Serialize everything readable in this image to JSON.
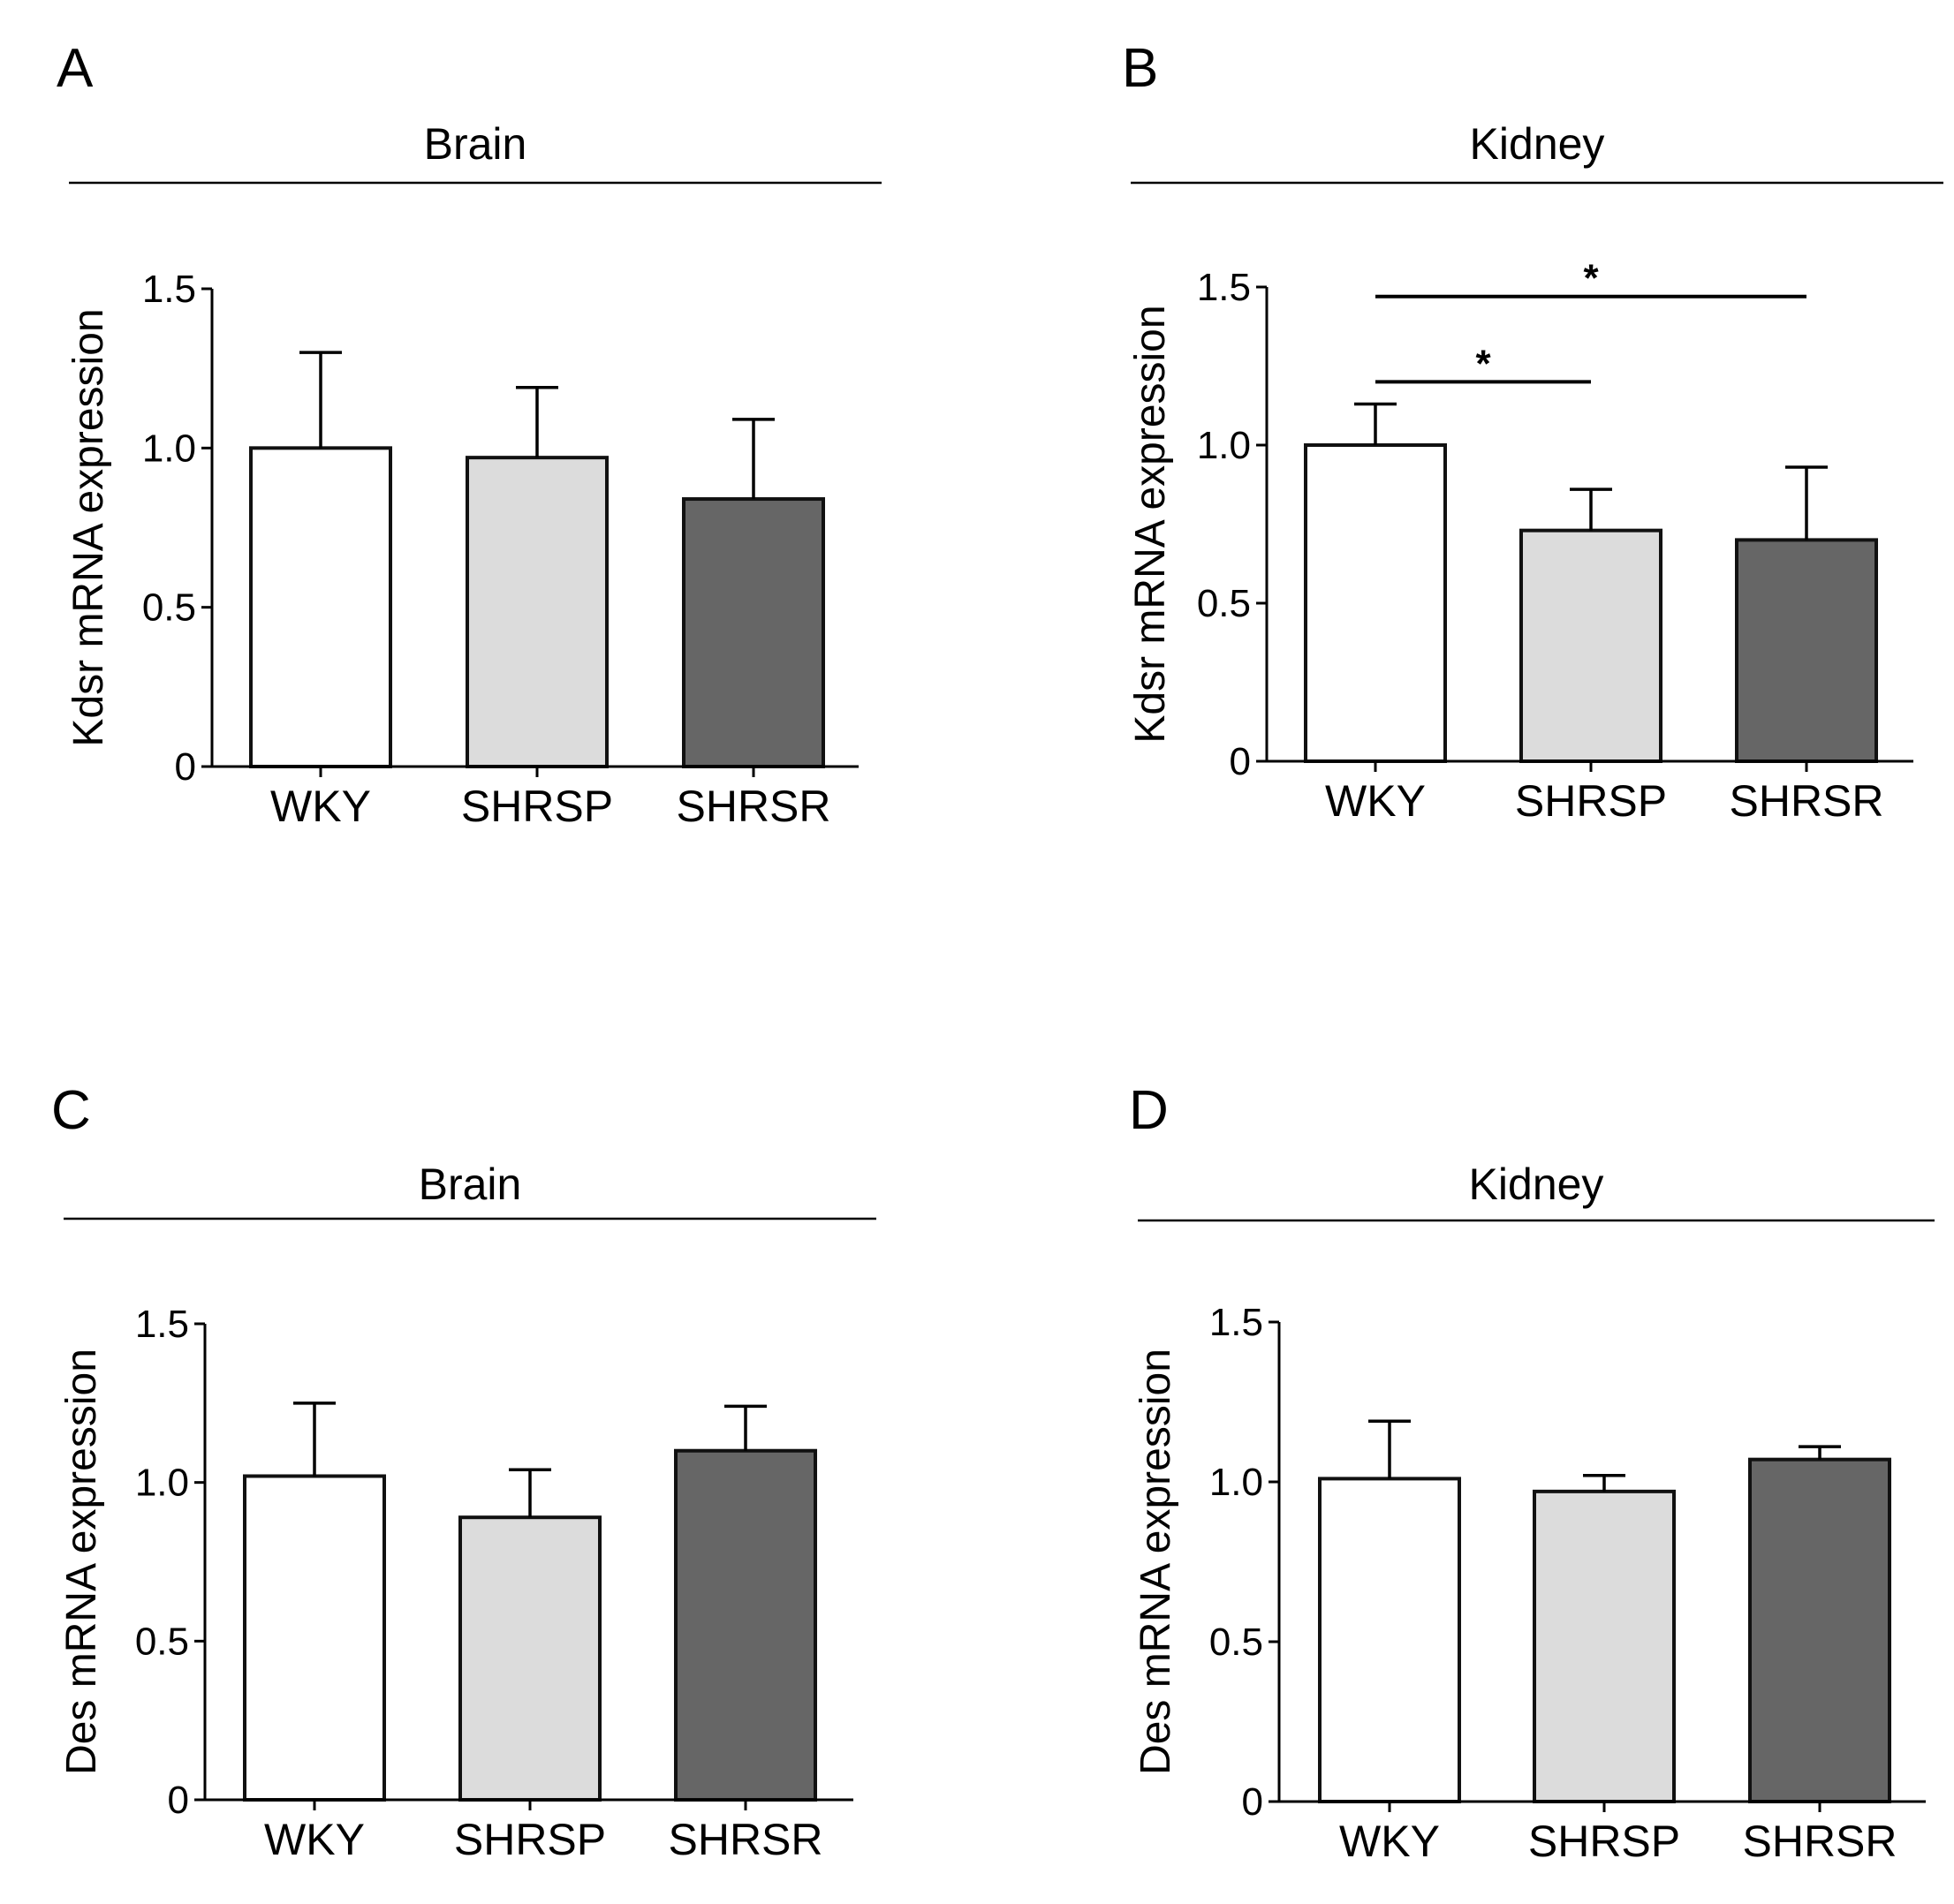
{
  "chart_data": [
    {
      "type": "bar",
      "panel": "A",
      "title": "Brain",
      "ylabel": "Kdsr mRNA expression",
      "xlabel": "",
      "categories": [
        "WKY",
        "SHRSP",
        "SHRSR"
      ],
      "values": [
        1.0,
        0.97,
        0.84
      ],
      "errors": [
        0.3,
        0.22,
        0.25
      ],
      "ylim": [
        0,
        1.5
      ],
      "yticks": [
        {
          "v": 0,
          "label": "0"
        },
        {
          "v": 0.5,
          "label": "0.5"
        },
        {
          "v": 1.0,
          "label": "1.0"
        },
        {
          "v": 1.5,
          "label": "1.5"
        }
      ],
      "colors": [
        "#ffffff",
        "#dcdcdc",
        "#666666"
      ],
      "significance": []
    },
    {
      "type": "bar",
      "panel": "B",
      "title": "Kidney",
      "ylabel": "Kdsr mRNA expression",
      "xlabel": "",
      "categories": [
        "WKY",
        "SHRSP",
        "SHRSR"
      ],
      "values": [
        1.0,
        0.73,
        0.7
      ],
      "errors": [
        0.13,
        0.13,
        0.23
      ],
      "ylim": [
        0,
        1.5
      ],
      "yticks": [
        {
          "v": 0,
          "label": "0"
        },
        {
          "v": 0.5,
          "label": "0.5"
        },
        {
          "v": 1.0,
          "label": "1.0"
        },
        {
          "v": 1.5,
          "label": "1.5"
        }
      ],
      "colors": [
        "#ffffff",
        "#dcdcdc",
        "#666666"
      ],
      "significance": [
        {
          "from": 0,
          "to": 1,
          "y": 1.2,
          "label": "*"
        },
        {
          "from": 0,
          "to": 2,
          "y": 1.47,
          "label": "*"
        }
      ]
    },
    {
      "type": "bar",
      "panel": "C",
      "title": "Brain",
      "ylabel": "Des mRNA expression",
      "xlabel": "",
      "categories": [
        "WKY",
        "SHRSP",
        "SHRSR"
      ],
      "values": [
        1.02,
        0.89,
        1.1
      ],
      "errors": [
        0.23,
        0.15,
        0.14
      ],
      "ylim": [
        0,
        1.5
      ],
      "yticks": [
        {
          "v": 0,
          "label": "0"
        },
        {
          "v": 0.5,
          "label": "0.5"
        },
        {
          "v": 1.0,
          "label": "1.0"
        },
        {
          "v": 1.5,
          "label": "1.5"
        }
      ],
      "colors": [
        "#ffffff",
        "#dcdcdc",
        "#666666"
      ],
      "significance": []
    },
    {
      "type": "bar",
      "panel": "D",
      "title": "Kidney",
      "ylabel": "Des mRNA expression",
      "xlabel": "",
      "categories": [
        "WKY",
        "SHRSP",
        "SHRSR"
      ],
      "values": [
        1.01,
        0.97,
        1.07
      ],
      "errors": [
        0.18,
        0.05,
        0.04
      ],
      "ylim": [
        0,
        1.5
      ],
      "yticks": [
        {
          "v": 0,
          "label": "0"
        },
        {
          "v": 0.5,
          "label": "0.5"
        },
        {
          "v": 1.0,
          "label": "1.0"
        },
        {
          "v": 1.5,
          "label": "1.5"
        }
      ],
      "colors": [
        "#ffffff",
        "#dcdcdc",
        "#666666"
      ],
      "significance": []
    }
  ]
}
